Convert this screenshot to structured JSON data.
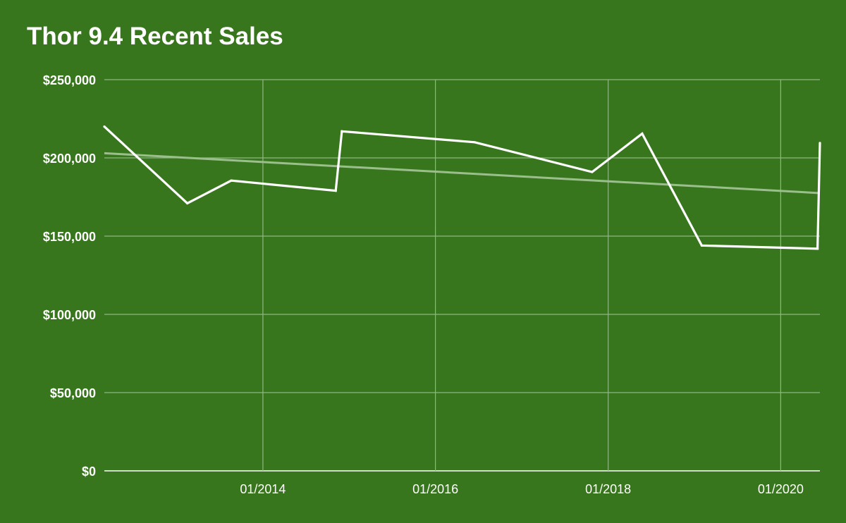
{
  "colors": {
    "background": "#38761d",
    "series_line": "#ffffff",
    "trendline": "#9bbf8c",
    "grid": "#8fb782"
  },
  "chart_data": {
    "type": "line",
    "title": "Thor 9.4 Recent Sales",
    "xlabel": "",
    "ylabel": "",
    "x_is_date": true,
    "xlim": [
      "2012-03-01",
      "2020-06-15"
    ],
    "ylim": [
      0,
      250000
    ],
    "y_ticks": [
      0,
      50000,
      100000,
      150000,
      200000,
      250000
    ],
    "y_tick_labels": [
      "$0",
      "$50,000",
      "$100,000",
      "$150,000",
      "$200,000",
      "$250,000"
    ],
    "x_ticks": [
      "2014-01-01",
      "2016-01-01",
      "2018-01-01",
      "2020-01-01"
    ],
    "x_tick_labels": [
      "01/2014",
      "01/2016",
      "01/2018",
      "01/2020"
    ],
    "grid": true,
    "legend": "none",
    "series": [
      {
        "values": [
          {
            "x": "2012-03-01",
            "y": 220000
          },
          {
            "x": "2013-02-15",
            "y": 171000
          },
          {
            "x": "2013-08-20",
            "y": 185500
          },
          {
            "x": "2014-11-05",
            "y": 179000
          },
          {
            "x": "2014-12-01",
            "y": 217000
          },
          {
            "x": "2016-06-15",
            "y": 210000
          },
          {
            "x": "2017-10-25",
            "y": 191000
          },
          {
            "x": "2018-05-25",
            "y": 215500
          },
          {
            "x": "2019-02-01",
            "y": 144000
          },
          {
            "x": "2020-06-05",
            "y": 142000
          },
          {
            "x": "2020-06-15",
            "y": 209500
          }
        ]
      }
    ],
    "trendline": {
      "type": "linear",
      "values": [
        {
          "x": "2012-03-01",
          "y": 203000
        },
        {
          "x": "2020-06-15",
          "y": 177500
        }
      ]
    }
  }
}
